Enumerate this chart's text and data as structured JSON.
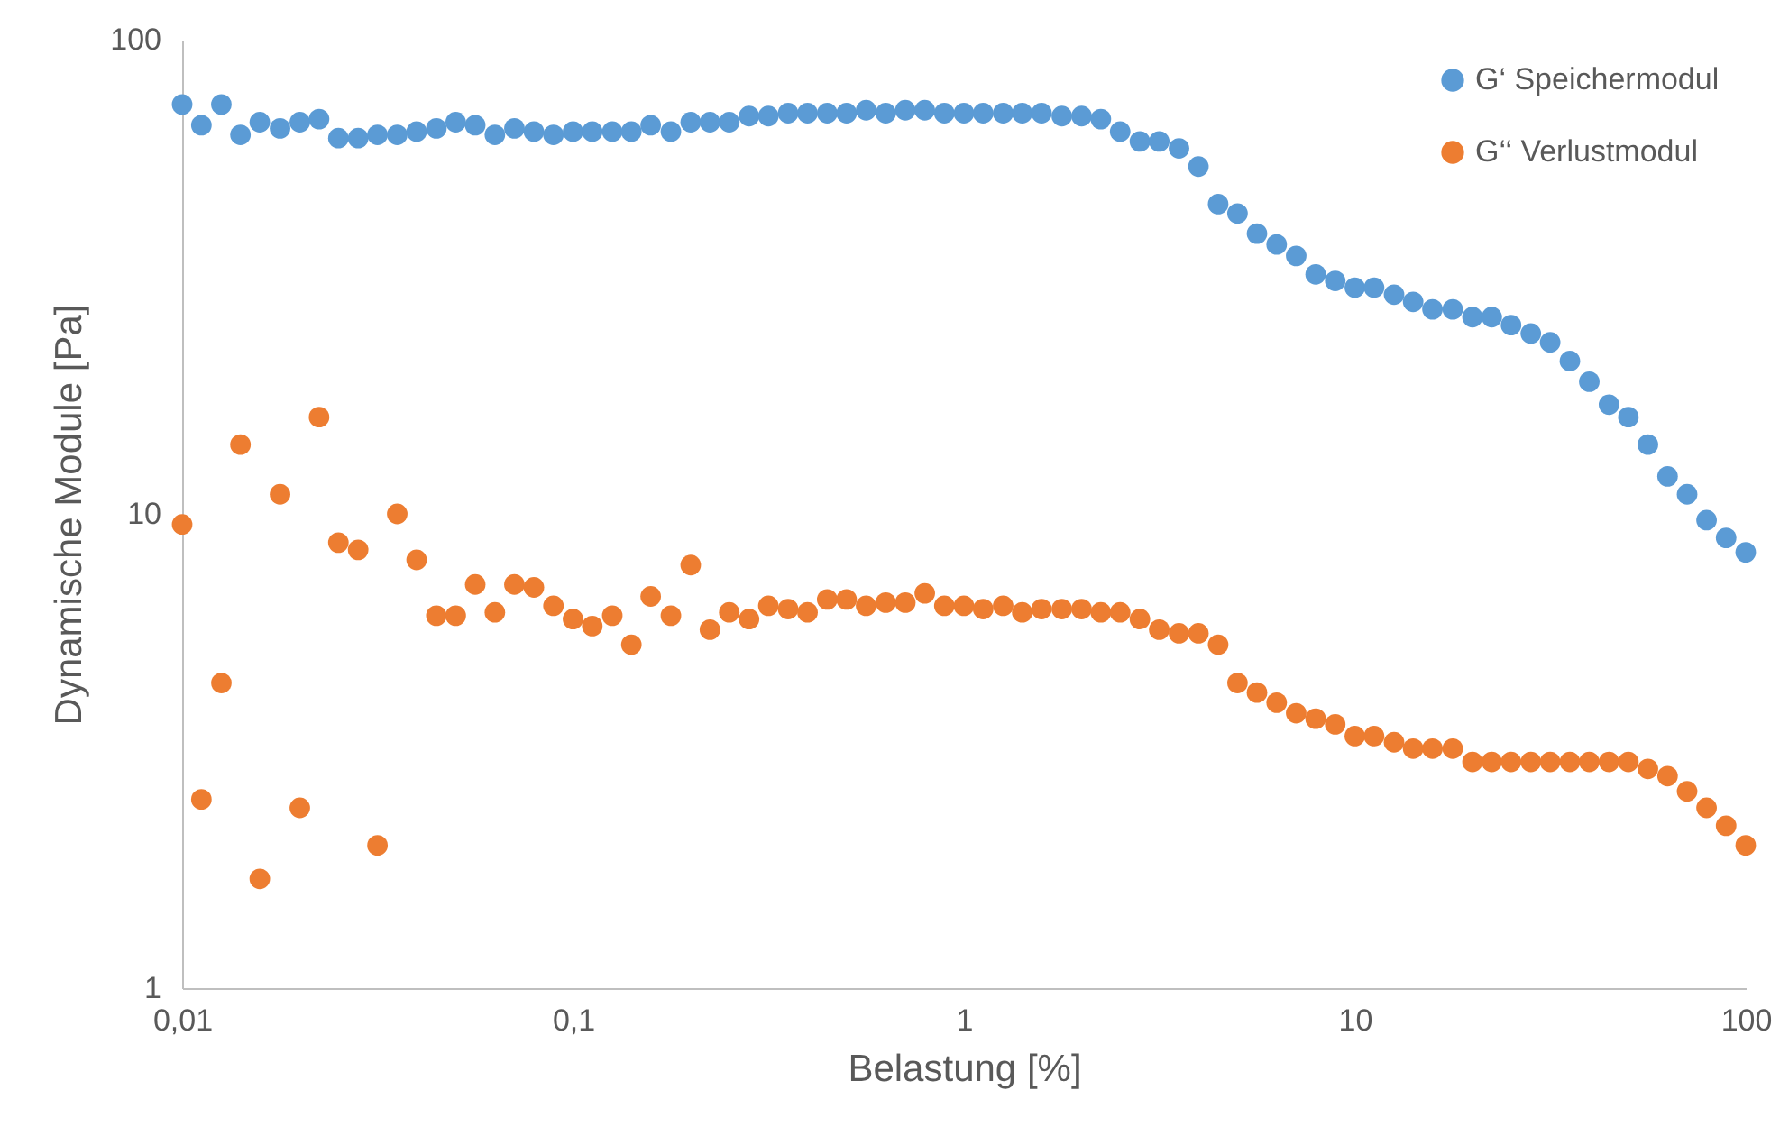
{
  "chart_data": {
    "type": "scatter",
    "xlabel": "Belastung [%]",
    "ylabel": "Dynamische Module [Pa]",
    "log": "xy",
    "grid": false,
    "legend": "top right",
    "marker": "circle",
    "xlim": [
      0.01,
      100
    ],
    "xticks": [
      {
        "value": 0.01,
        "label": "0,01"
      },
      {
        "value": 0.1,
        "label": "0,1"
      },
      1,
      10,
      100
    ],
    "ylim": [
      1,
      100
    ],
    "yticks": [
      1,
      10,
      100
    ],
    "x": [
      0.01,
      0.0112,
      0.0126,
      0.0141,
      0.0158,
      0.0178,
      0.02,
      0.0224,
      0.0251,
      0.0282,
      0.0316,
      0.0355,
      0.0398,
      0.0447,
      0.0501,
      0.0562,
      0.0631,
      0.0708,
      0.0794,
      0.0891,
      0.1,
      0.112,
      0.126,
      0.141,
      0.158,
      0.178,
      0.2,
      0.224,
      0.251,
      0.282,
      0.316,
      0.355,
      0.398,
      0.447,
      0.501,
      0.562,
      0.631,
      0.708,
      0.794,
      0.891,
      1,
      1.12,
      1.26,
      1.41,
      1.58,
      1.78,
      2,
      2.24,
      2.51,
      2.82,
      3.16,
      3.55,
      3.98,
      4.47,
      5.01,
      5.62,
      6.31,
      7.08,
      7.94,
      8.91,
      10,
      11.2,
      12.6,
      14.1,
      15.8,
      17.8,
      20,
      22.4,
      25.1,
      28.2,
      31.6,
      35.5,
      39.8,
      44.7,
      50.1,
      56.2,
      63.1,
      70.8,
      79.4,
      89.1,
      100
    ],
    "series": [
      {
        "name": "G‘ Speichermodul",
        "color": "#5b9bd5",
        "values": [
          73,
          66,
          73,
          63,
          67,
          65,
          67,
          68,
          62,
          62,
          63,
          63,
          64,
          65,
          67,
          66,
          63,
          65,
          64,
          63,
          64,
          64,
          64,
          64,
          66,
          64,
          67,
          67,
          67,
          69,
          69,
          70,
          70,
          70,
          70,
          71,
          70,
          71,
          71,
          70,
          70,
          70,
          70,
          70,
          70,
          69,
          69,
          68,
          64,
          61,
          61,
          59,
          54,
          45,
          43,
          39,
          37,
          35,
          32,
          31,
          30,
          30,
          29,
          28,
          27,
          27,
          26,
          26,
          25,
          24,
          23,
          21,
          19,
          17,
          16,
          14,
          12,
          11,
          9.7,
          8.9,
          8.3
        ]
      },
      {
        "name": "G‘‘ Verlustmodul",
        "color": "#ed7d31",
        "values": [
          9.5,
          2.5,
          4.4,
          14,
          1.7,
          11,
          2.4,
          16,
          8.7,
          8.4,
          2.0,
          10,
          8.0,
          6.1,
          6.1,
          7.1,
          6.2,
          7.1,
          7.0,
          6.4,
          6.0,
          5.8,
          6.1,
          5.3,
          6.7,
          6.1,
          7.8,
          5.7,
          6.2,
          6.0,
          6.4,
          6.3,
          6.2,
          6.6,
          6.6,
          6.4,
          6.5,
          6.5,
          6.8,
          6.4,
          6.4,
          6.3,
          6.4,
          6.2,
          6.3,
          6.3,
          6.3,
          6.2,
          6.2,
          6.0,
          5.7,
          5.6,
          5.6,
          5.3,
          4.4,
          4.2,
          4.0,
          3.8,
          3.7,
          3.6,
          3.4,
          3.4,
          3.3,
          3.2,
          3.2,
          3.2,
          3.0,
          3.0,
          3.0,
          3.0,
          3.0,
          3.0,
          3.0,
          3.0,
          3.0,
          2.9,
          2.8,
          2.6,
          2.4,
          2.2,
          2.0
        ]
      }
    ]
  }
}
